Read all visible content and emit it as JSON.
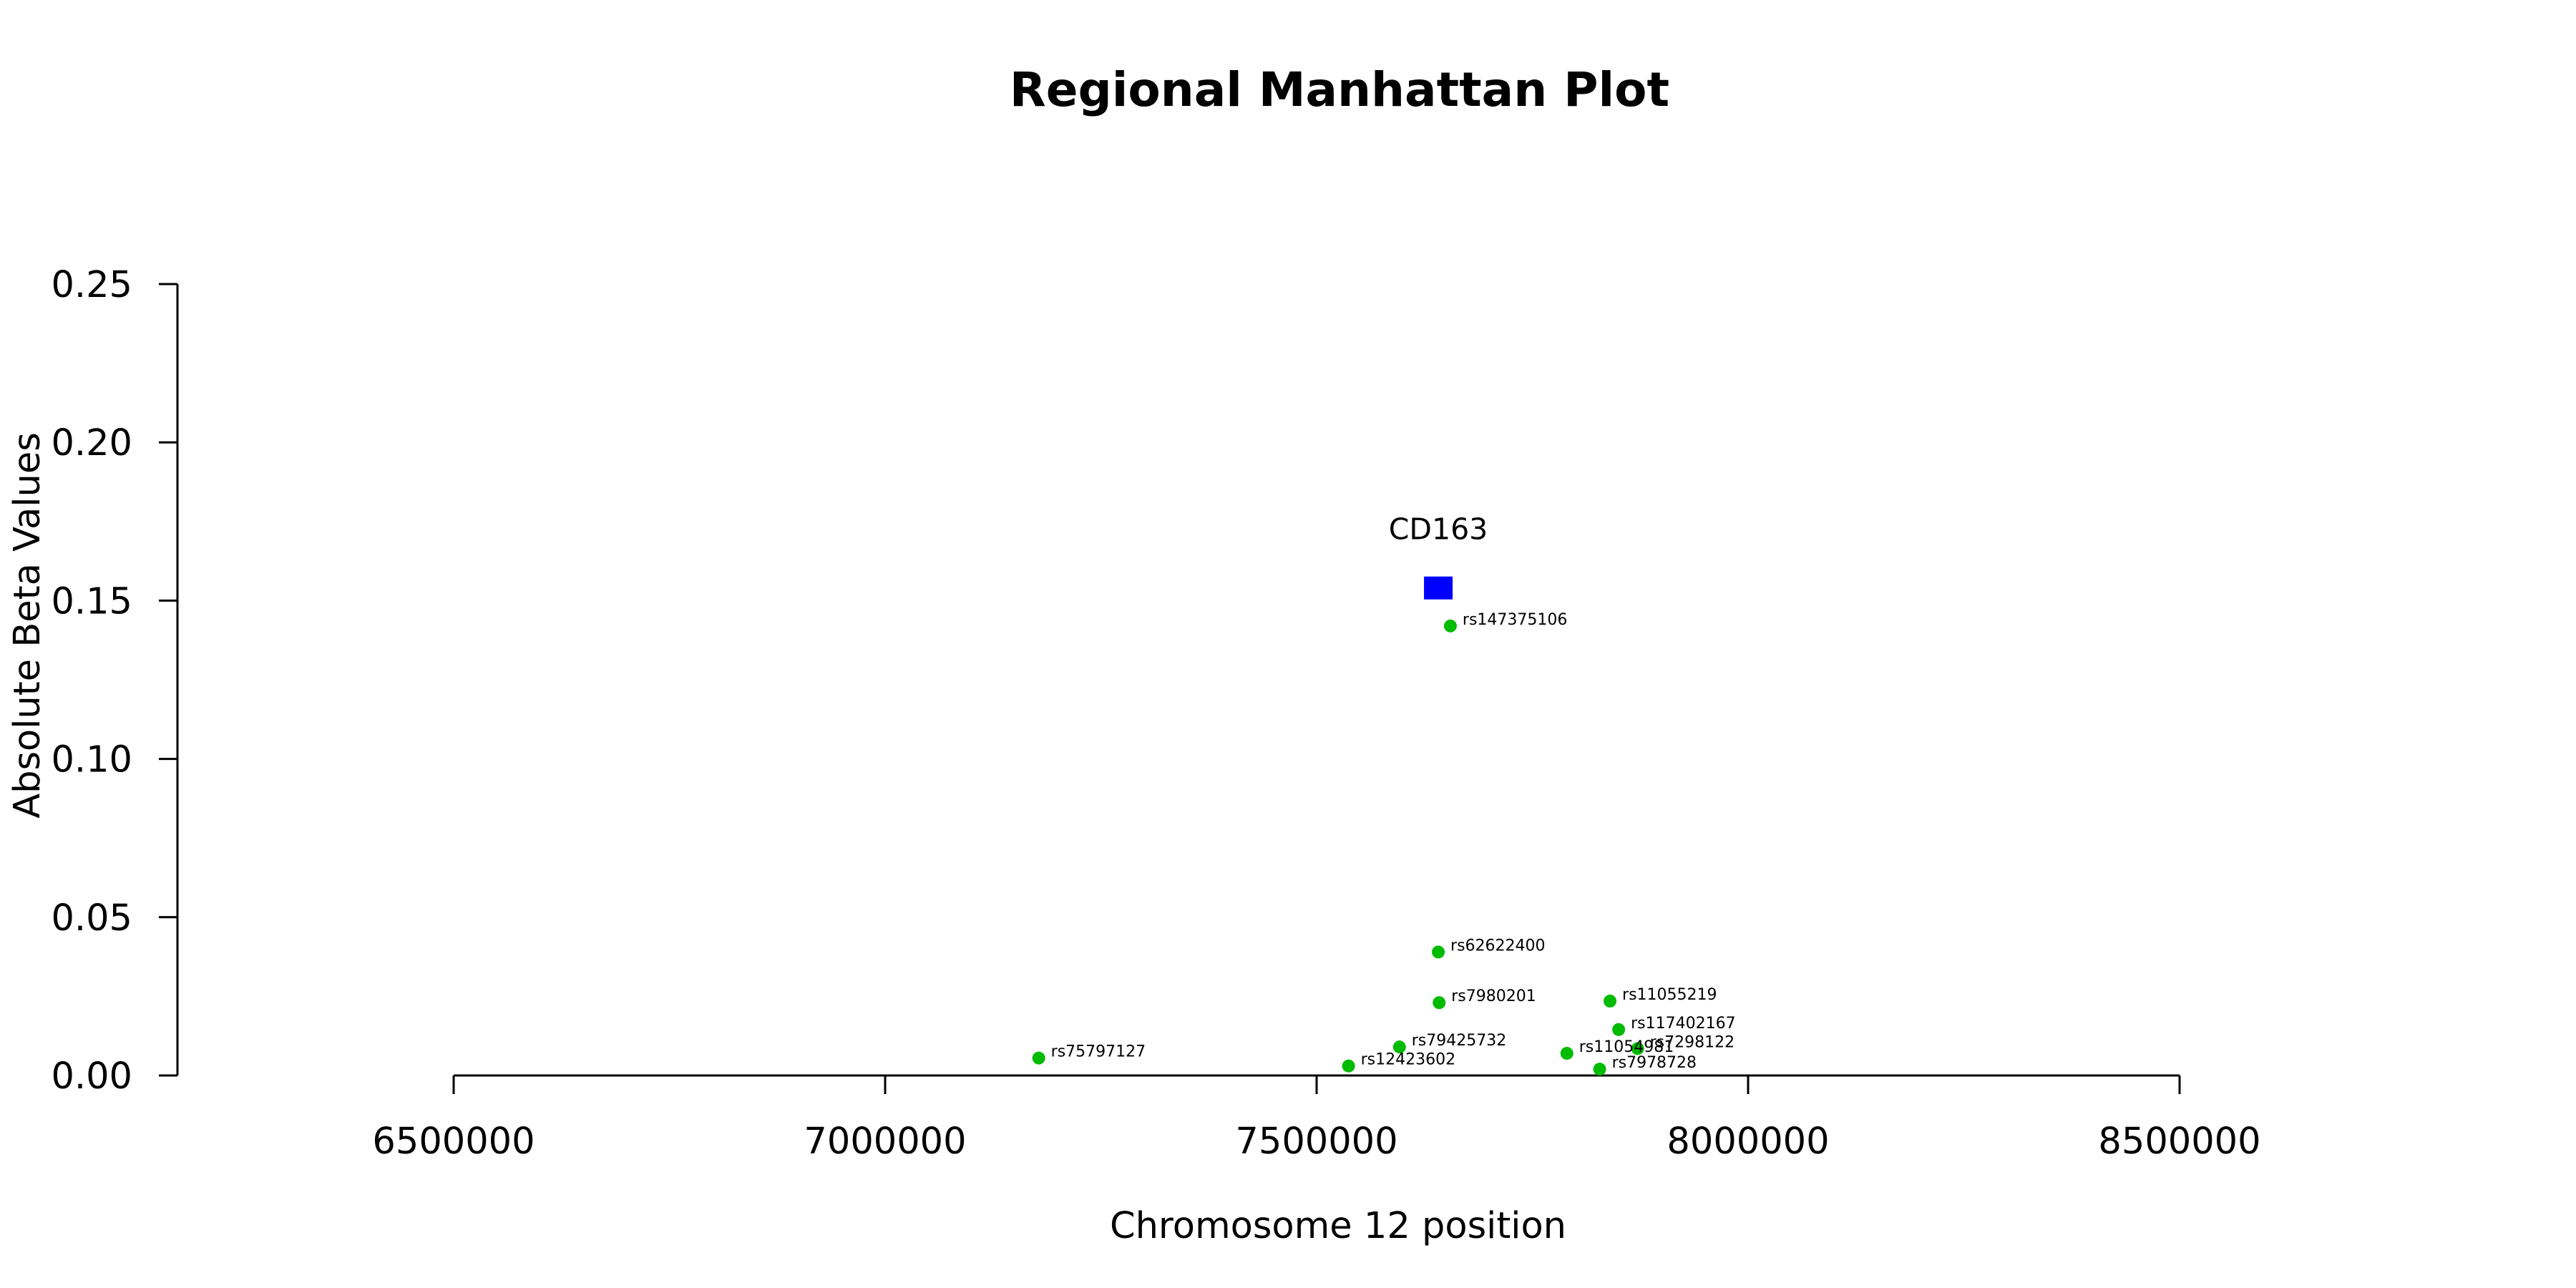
{
  "chart_data": {
    "type": "scatter",
    "title": "Regional Manhattan Plot",
    "xlabel": "Chromosome 12 position",
    "ylabel": "Absolute Beta Values",
    "xlim": [
      6500000,
      8500000
    ],
    "ylim": [
      0,
      0.25
    ],
    "x_ticks": [
      6500000,
      7000000,
      7500000,
      8000000,
      8500000
    ],
    "x_tick_labels": [
      "6500000",
      "7000000",
      "7500000",
      "8000000",
      "8500000"
    ],
    "y_ticks": [
      0,
      0.05,
      0.1,
      0.15,
      0.2,
      0.25
    ],
    "y_tick_labels": [
      "0.00",
      "0.05",
      "0.10",
      "0.15",
      "0.20",
      "0.25"
    ],
    "grid": false,
    "gene": {
      "label": "CD163",
      "x": 7641000,
      "y": 0.154,
      "color": "#0000ff",
      "marker": "square"
    },
    "snp_color": "#00bb00",
    "snps": [
      {
        "id": "rs147375106",
        "x": 7655000,
        "y": 0.142
      },
      {
        "id": "rs62622400",
        "x": 7641000,
        "y": 0.039
      },
      {
        "id": "rs7980201",
        "x": 7642000,
        "y": 0.023
      },
      {
        "id": "rs11055219",
        "x": 7840000,
        "y": 0.0235
      },
      {
        "id": "rs117402167",
        "x": 7850000,
        "y": 0.0145
      },
      {
        "id": "rs7298122",
        "x": 7872000,
        "y": 0.0085
      },
      {
        "id": "rs11054981",
        "x": 7790000,
        "y": 0.007
      },
      {
        "id": "rs7978728",
        "x": 7828000,
        "y": 0.002
      },
      {
        "id": "rs79425732",
        "x": 7596000,
        "y": 0.009
      },
      {
        "id": "rs12423602",
        "x": 7537000,
        "y": 0.003
      },
      {
        "id": "rs75797127",
        "x": 7178000,
        "y": 0.0055
      }
    ]
  }
}
